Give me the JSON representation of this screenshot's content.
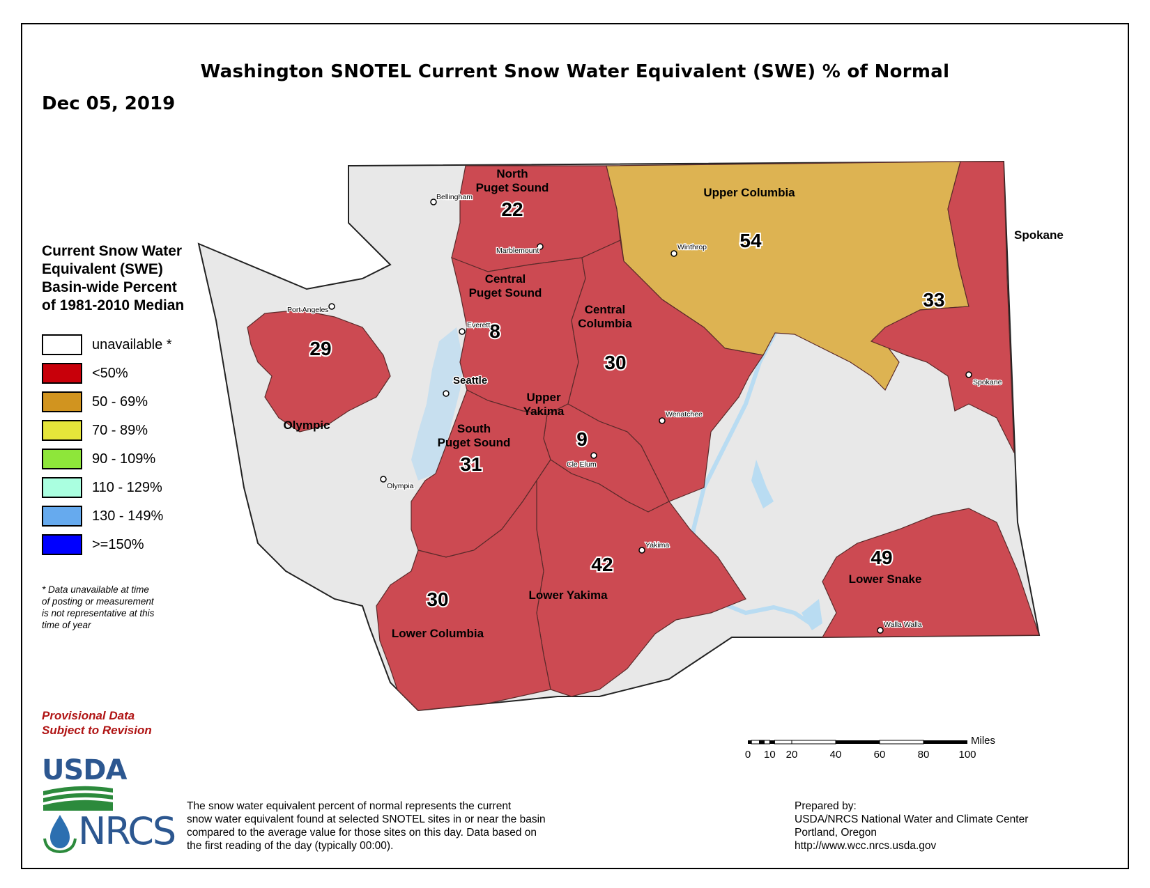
{
  "title": "Washington SNOTEL Current Snow Water Equivalent (SWE) % of Normal",
  "date": "Dec 05, 2019",
  "legend": {
    "title_lines": [
      "Current Snow Water",
      "Equivalent (SWE)",
      "Basin-wide Percent",
      "of 1981-2010 Median"
    ],
    "items": [
      {
        "label": "unavailable *",
        "color": "#ffffff"
      },
      {
        "label": "<50%",
        "color": "#c8000a"
      },
      {
        "label": "50 - 69%",
        "color": "#d1941f"
      },
      {
        "label": "70 - 89%",
        "color": "#e6e63a"
      },
      {
        "label": "90 - 109%",
        "color": "#8ee63a"
      },
      {
        "label": "110 - 129%",
        "color": "#aaffe0"
      },
      {
        "label": "130 - 149%",
        "color": "#66aaee"
      },
      {
        "label": ">=150%",
        "color": "#0000ff"
      }
    ]
  },
  "footnote_lines": [
    "*  Data unavailable at time",
    "   of posting or measurement",
    "   is not representative at this",
    "   time of year"
  ],
  "provisional_lines": [
    "Provisional Data",
    "Subject to Revision"
  ],
  "logos": {
    "usda": "USDA",
    "nrcs": "NRCS"
  },
  "description_lines": [
    "The snow water equivalent percent of normal represents the current",
    "snow water equivalent found at selected SNOTEL sites in or near the basin",
    "compared to the average value for those sites on this day. Data based on",
    "the first reading of the day (typically 00:00)."
  ],
  "prepared_lines": [
    "Prepared by:",
    "USDA/NRCS National Water and Climate Center",
    "Portland, Oregon",
    "http://www.wcc.nrcs.usda.gov"
  ],
  "scale": {
    "unit": "Miles",
    "ticks": [
      "0",
      "10",
      "20",
      "40",
      "60",
      "80",
      "100"
    ]
  },
  "colors": {
    "red": "#cc4a52",
    "gold": "#ddb352",
    "unavailable": "#e8e8e8",
    "water": "#b9dcf2"
  },
  "basins": [
    {
      "name_lines": [
        "North",
        "Puget Sound"
      ],
      "value": "22",
      "color": "red"
    },
    {
      "name_lines": [
        "Upper Columbia"
      ],
      "value": "54",
      "color": "gold"
    },
    {
      "name_lines": [
        "Central",
        "Puget Sound"
      ],
      "value": "8",
      "color": "red"
    },
    {
      "name_lines": [
        "Central",
        "Columbia"
      ],
      "value": "30",
      "color": "red"
    },
    {
      "name_lines": [],
      "value": "33",
      "color": "red"
    },
    {
      "name_lines": [],
      "value": "29",
      "color": "red"
    },
    {
      "name_lines": [
        "Olympic"
      ],
      "value": "",
      "color": "unavailable"
    },
    {
      "name_lines": [
        "Upper",
        "Yakima"
      ],
      "value": "9",
      "color": "red"
    },
    {
      "name_lines": [
        "South",
        "Puget Sound"
      ],
      "value": "31",
      "color": "red"
    },
    {
      "name_lines": [
        "Lower Yakima"
      ],
      "value": "42",
      "color": "red"
    },
    {
      "name_lines": [
        "Lower Columbia"
      ],
      "value": "30",
      "color": "red"
    },
    {
      "name_lines": [
        "Lower Snake"
      ],
      "value": "49",
      "color": "red"
    }
  ],
  "cities": [
    "Bellingham",
    "Marblemount",
    "Winthrop",
    "Port Angeles",
    "Everett",
    "Seattle",
    "Wenatchee",
    "Cle Elum",
    "Olympia",
    "Yakima",
    "Spokane",
    "Walla Walla"
  ],
  "outside_labels": {
    "spokane": "Spokane"
  }
}
